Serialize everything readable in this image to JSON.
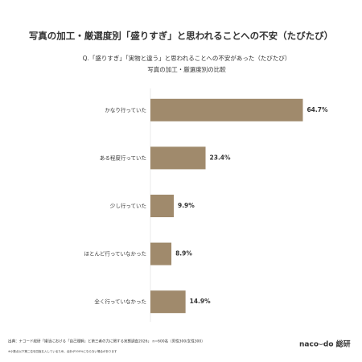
{
  "chart_data": {
    "type": "hbar",
    "title": "写真の加工・厳選度別「盛りすぎ」と思われることへの不安（たびたび）",
    "subtitle": [
      "Q.「盛りすぎ」「実物と違う」と思われることへの不安があった（たびたび）",
      "写真の加工・厳選度別の比較"
    ],
    "categories": [
      "かなり行っていた",
      "ある程度行っていた",
      "少し行っていた",
      "ほとんど行っていなかった",
      "全く行っていなかった"
    ],
    "values": [
      64.7,
      23.4,
      9.9,
      8.9,
      14.9
    ],
    "value_labels": [
      "64.7%",
      "23.4%",
      "9.9%",
      "8.9%",
      "14.9%"
    ],
    "color": "#a08a6c",
    "xlim": [
      0,
      70
    ],
    "source": "出典：ナコード総研「婚活における「自己理解」と第三者の力に関する実態調査2026」 n=600名（男性300/女性300）",
    "note": "※小数点以下第二位を四捨五入しているため、合計が100%にならない場合があります",
    "logo": "naco⌣do 総研"
  }
}
